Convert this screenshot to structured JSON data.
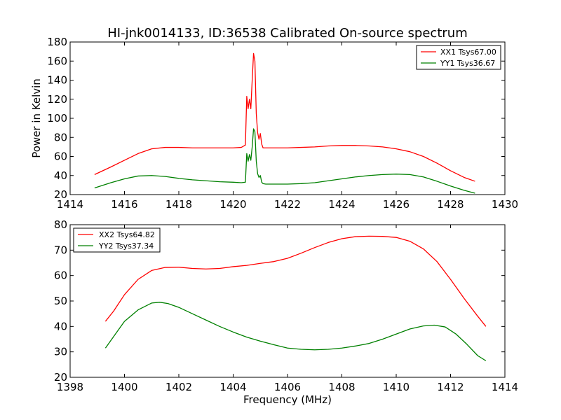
{
  "figure_title": "HI-jnk0014133, ID:36538 Calibrated On-source spectrum",
  "chart_data": [
    {
      "type": "line",
      "title": "HI-jnk0014133, ID:36538 Calibrated On-source spectrum",
      "xlabel": "",
      "ylabel": "Power in Kelvin",
      "xlim": [
        1414,
        1430
      ],
      "ylim": [
        20,
        180
      ],
      "xticks": [
        "1414",
        "1416",
        "1418",
        "1420",
        "1422",
        "1424",
        "1426",
        "1428",
        "1430"
      ],
      "yticks": [
        "20",
        "40",
        "60",
        "80",
        "100",
        "120",
        "140",
        "160",
        "180"
      ],
      "grid": false,
      "legend_position": "top-right",
      "series": [
        {
          "name": "XX1 Tsys67.00",
          "color": "#ff0000",
          "x": [
            1414.9,
            1415.5,
            1416.0,
            1416.5,
            1417.0,
            1417.5,
            1418.0,
            1418.5,
            1419.0,
            1419.5,
            1420.0,
            1420.3,
            1420.45,
            1420.5,
            1420.55,
            1420.6,
            1420.65,
            1420.7,
            1420.75,
            1420.8,
            1420.85,
            1420.9,
            1420.95,
            1421.0,
            1421.05,
            1421.1,
            1421.2,
            1421.5,
            1422.0,
            1422.5,
            1423.0,
            1423.5,
            1424.0,
            1424.5,
            1425.0,
            1425.5,
            1426.0,
            1426.5,
            1427.0,
            1427.5,
            1428.0,
            1428.5,
            1428.9
          ],
          "y": [
            41,
            49,
            56,
            63,
            68,
            69.5,
            69.5,
            69,
            69,
            69,
            69,
            69.5,
            72,
            123,
            110,
            120,
            110,
            140,
            168,
            160,
            105,
            85,
            78,
            84,
            73,
            69,
            69,
            69,
            69,
            69.5,
            70,
            71,
            71.5,
            71.5,
            71,
            70,
            68,
            65,
            60,
            53,
            45,
            38,
            34
          ]
        },
        {
          "name": "YY1 Tsys36.67",
          "color": "#008000",
          "x": [
            1414.9,
            1415.5,
            1416.0,
            1416.5,
            1417.0,
            1417.5,
            1418.0,
            1418.5,
            1419.0,
            1419.5,
            1420.0,
            1420.3,
            1420.45,
            1420.5,
            1420.55,
            1420.6,
            1420.65,
            1420.7,
            1420.75,
            1420.8,
            1420.85,
            1420.9,
            1420.95,
            1421.0,
            1421.05,
            1421.1,
            1421.2,
            1421.5,
            1422.0,
            1422.5,
            1423.0,
            1423.5,
            1424.0,
            1424.5,
            1425.0,
            1425.5,
            1426.0,
            1426.5,
            1427.0,
            1427.5,
            1428.0,
            1428.5,
            1428.9
          ],
          "y": [
            27,
            32.5,
            36.5,
            39.5,
            40,
            39,
            37,
            35.5,
            34.5,
            33.5,
            33,
            32.5,
            33,
            63,
            55,
            62,
            56,
            70,
            89,
            86,
            55,
            42,
            38,
            40,
            33,
            31.5,
            31,
            31,
            31,
            31.5,
            32.5,
            34.5,
            36.5,
            38.5,
            40,
            41,
            41.5,
            41,
            38.5,
            34,
            29,
            24.5,
            21.5
          ]
        }
      ]
    },
    {
      "type": "line",
      "title": "",
      "xlabel": "Frequency (MHz)",
      "ylabel": "",
      "xlim": [
        1398,
        1414
      ],
      "ylim": [
        20,
        80
      ],
      "xticks": [
        "1398",
        "1400",
        "1402",
        "1404",
        "1406",
        "1408",
        "1410",
        "1412",
        "1414"
      ],
      "yticks": [
        "20",
        "30",
        "40",
        "50",
        "60",
        "70",
        "80"
      ],
      "grid": false,
      "legend_position": "top-left",
      "series": [
        {
          "name": "XX2 Tsys64.82",
          "color": "#ff0000",
          "x": [
            1399.3,
            1399.6,
            1400.0,
            1400.5,
            1401.0,
            1401.5,
            1402.0,
            1402.5,
            1403.0,
            1403.5,
            1404.0,
            1404.5,
            1405.0,
            1405.5,
            1406.0,
            1406.5,
            1407.0,
            1407.5,
            1408.0,
            1408.5,
            1409.0,
            1409.5,
            1410.0,
            1410.5,
            1411.0,
            1411.5,
            1412.0,
            1412.5,
            1413.0,
            1413.3
          ],
          "y": [
            42,
            46,
            52.5,
            58.5,
            62,
            63.2,
            63.3,
            62.8,
            62.6,
            62.8,
            63.5,
            64,
            64.8,
            65.5,
            66.8,
            68.8,
            71,
            73,
            74.5,
            75.3,
            75.5,
            75.4,
            75,
            73.5,
            70.5,
            65.5,
            58.5,
            51,
            44,
            40
          ]
        },
        {
          "name": "YY2 Tsys37.34",
          "color": "#008000",
          "x": [
            1399.3,
            1399.6,
            1400.0,
            1400.5,
            1401.0,
            1401.3,
            1401.6,
            1402.0,
            1402.5,
            1403.0,
            1403.5,
            1404.0,
            1404.5,
            1405.0,
            1405.5,
            1406.0,
            1406.5,
            1407.0,
            1407.5,
            1408.0,
            1408.5,
            1409.0,
            1409.5,
            1410.0,
            1410.5,
            1411.0,
            1411.4,
            1411.8,
            1412.2,
            1412.6,
            1413.0,
            1413.3
          ],
          "y": [
            31.5,
            36,
            42,
            46.5,
            49.2,
            49.5,
            49,
            47.5,
            45,
            42.5,
            40,
            37.8,
            35.8,
            34.2,
            32.8,
            31.5,
            31,
            30.8,
            31,
            31.5,
            32.3,
            33.3,
            35,
            37,
            39,
            40.2,
            40.5,
            39.8,
            37,
            33,
            28.5,
            26.5
          ]
        }
      ]
    }
  ]
}
